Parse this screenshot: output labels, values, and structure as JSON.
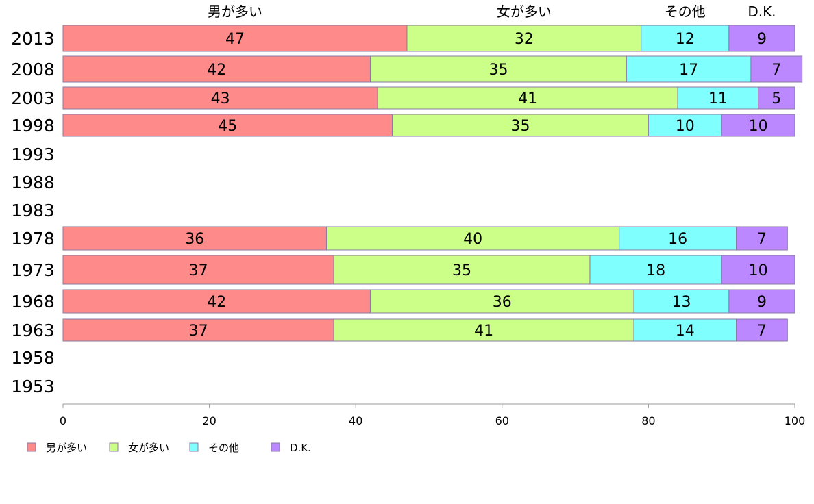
{
  "chart_data": {
    "type": "bar",
    "orientation": "horizontal",
    "stacked": true,
    "categories": [
      "2013",
      "2008",
      "2003",
      "1998",
      "1993",
      "1988",
      "1983",
      "1978",
      "1973",
      "1968",
      "1963",
      "1958",
      "1953"
    ],
    "series": [
      {
        "name": "男が多い",
        "color": "#ff8a8a",
        "values": [
          47,
          42,
          43,
          45,
          null,
          null,
          null,
          36,
          37,
          42,
          37,
          null,
          null
        ]
      },
      {
        "name": "女が多い",
        "color": "#ccff88",
        "values": [
          32,
          35,
          41,
          35,
          null,
          null,
          null,
          40,
          35,
          36,
          41,
          null,
          null
        ]
      },
      {
        "name": "その他",
        "color": "#80ffff",
        "values": [
          12,
          17,
          11,
          10,
          null,
          null,
          null,
          16,
          18,
          13,
          14,
          null,
          null
        ]
      },
      {
        "name": "D.K.",
        "color": "#bb88ff",
        "values": [
          9,
          7,
          5,
          10,
          null,
          null,
          null,
          7,
          10,
          9,
          7,
          null,
          null
        ]
      }
    ],
    "xlim": [
      0,
      100
    ],
    "xticks": [
      "0",
      "20",
      "40",
      "60",
      "80",
      "100"
    ],
    "top_labels": [
      "男が多い",
      "女が多い",
      "その他",
      "D.K."
    ],
    "legend": [
      "男が多い",
      "女が多い",
      "その他",
      "D.K."
    ],
    "legend_position": "bottom-left",
    "grid": false
  }
}
